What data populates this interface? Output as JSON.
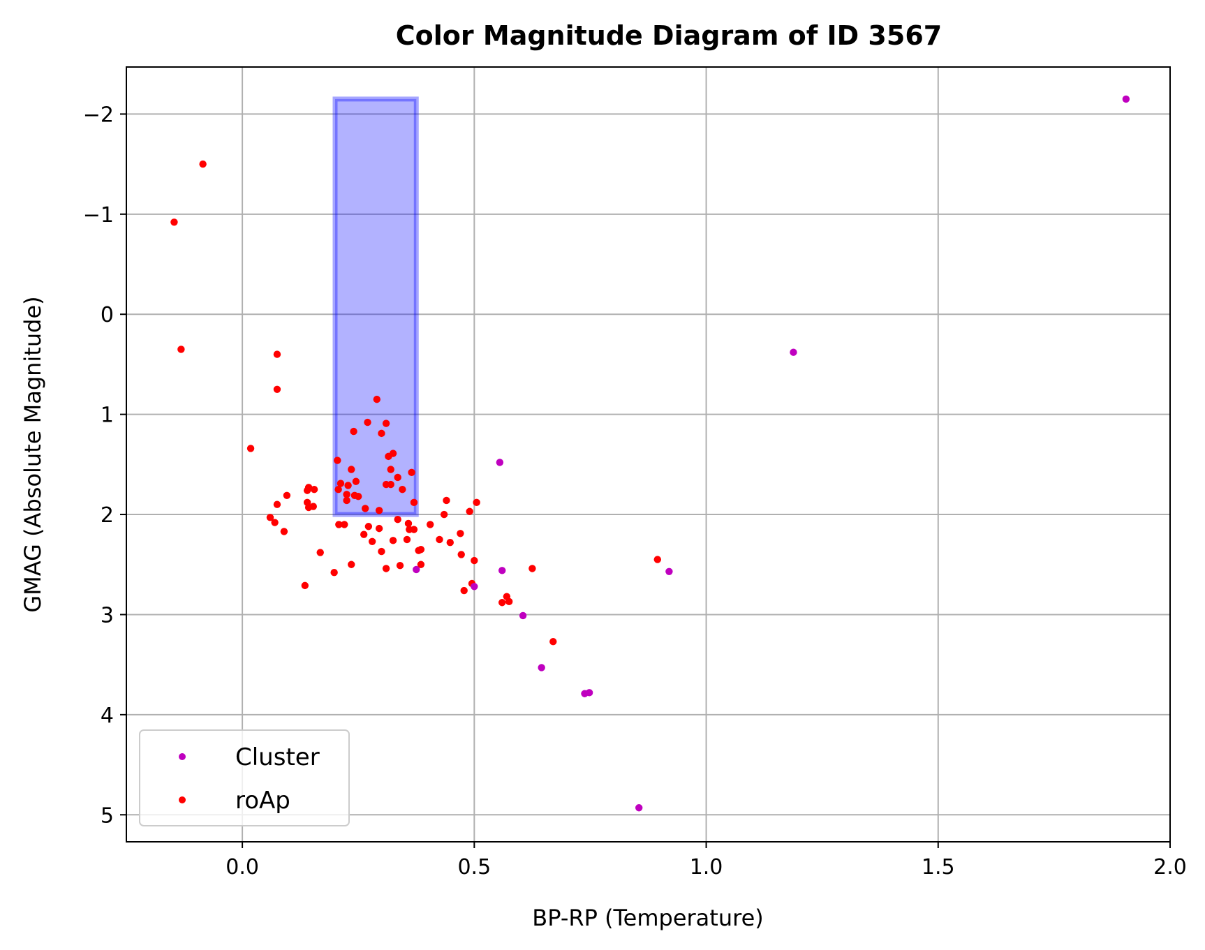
{
  "chart_data": {
    "type": "scatter",
    "title": "Color Magnitude Diagram of ID 3567",
    "xlabel": "BP-RP (Temperature)",
    "ylabel": "GMAG (Absolute Magnitude)",
    "xlim": [
      -0.25,
      2.0
    ],
    "ylim": [
      5.27,
      -2.47
    ],
    "y_inverted": true,
    "grid": true,
    "x_ticks": [
      0.0,
      0.5,
      1.0,
      1.5,
      2.0
    ],
    "x_tick_labels": [
      "0.0",
      "0.5",
      "1.0",
      "1.5",
      "2.0"
    ],
    "y_ticks": [
      -2,
      -1,
      0,
      1,
      2,
      3,
      4,
      5
    ],
    "y_tick_labels": [
      "−2",
      "−1",
      "0",
      "1",
      "2",
      "3",
      "4",
      "5"
    ],
    "highlight_region": {
      "x_range": [
        0.2,
        0.375
      ],
      "y_range": [
        -2.15,
        2.0
      ],
      "color": "#0000ff"
    },
    "legend": {
      "location": "lower-left",
      "entries": [
        "Cluster",
        "roAp"
      ]
    },
    "series": [
      {
        "name": "roAp",
        "color": "#ff0000",
        "points": [
          [
            -0.085,
            -1.5
          ],
          [
            -0.147,
            -0.92
          ],
          [
            -0.132,
            0.35
          ],
          [
            0.075,
            0.4
          ],
          [
            0.075,
            0.75
          ],
          [
            0.018,
            1.34
          ],
          [
            0.06,
            2.03
          ],
          [
            0.075,
            1.9
          ],
          [
            0.07,
            2.08
          ],
          [
            0.09,
            2.17
          ],
          [
            0.096,
            1.81
          ],
          [
            0.14,
            1.76
          ],
          [
            0.143,
            1.73
          ],
          [
            0.155,
            1.75
          ],
          [
            0.14,
            1.88
          ],
          [
            0.143,
            1.93
          ],
          [
            0.153,
            1.92
          ],
          [
            0.168,
            2.38
          ],
          [
            0.135,
            2.71
          ],
          [
            0.198,
            2.58
          ],
          [
            0.205,
            1.46
          ],
          [
            0.207,
            1.75
          ],
          [
            0.212,
            1.69
          ],
          [
            0.225,
            1.86
          ],
          [
            0.225,
            1.8
          ],
          [
            0.235,
            1.55
          ],
          [
            0.228,
            1.71
          ],
          [
            0.242,
            1.81
          ],
          [
            0.245,
            1.67
          ],
          [
            0.25,
            1.82
          ],
          [
            0.24,
            1.17
          ],
          [
            0.265,
            1.94
          ],
          [
            0.27,
            1.08
          ],
          [
            0.29,
            0.85
          ],
          [
            0.3,
            1.19
          ],
          [
            0.31,
            1.09
          ],
          [
            0.295,
            1.96
          ],
          [
            0.315,
            1.42
          ],
          [
            0.32,
            1.55
          ],
          [
            0.325,
            1.39
          ],
          [
            0.31,
            1.7
          ],
          [
            0.32,
            1.7
          ],
          [
            0.335,
            1.63
          ],
          [
            0.345,
            1.75
          ],
          [
            0.365,
            1.58
          ],
          [
            0.37,
            1.88
          ],
          [
            0.208,
            2.1
          ],
          [
            0.22,
            2.1
          ],
          [
            0.262,
            2.2
          ],
          [
            0.272,
            2.12
          ],
          [
            0.28,
            2.27
          ],
          [
            0.295,
            2.14
          ],
          [
            0.3,
            2.37
          ],
          [
            0.31,
            2.54
          ],
          [
            0.325,
            2.26
          ],
          [
            0.335,
            2.05
          ],
          [
            0.34,
            2.51
          ],
          [
            0.355,
            2.25
          ],
          [
            0.358,
            2.09
          ],
          [
            0.36,
            2.15
          ],
          [
            0.37,
            2.15
          ],
          [
            0.38,
            2.36
          ],
          [
            0.385,
            2.35
          ],
          [
            0.385,
            2.5
          ],
          [
            0.405,
            2.1
          ],
          [
            0.425,
            2.25
          ],
          [
            0.435,
            2.0
          ],
          [
            0.44,
            1.86
          ],
          [
            0.448,
            2.28
          ],
          [
            0.47,
            2.19
          ],
          [
            0.472,
            2.4
          ],
          [
            0.478,
            2.76
          ],
          [
            0.49,
            1.97
          ],
          [
            0.495,
            2.69
          ],
          [
            0.5,
            2.46
          ],
          [
            0.505,
            1.88
          ],
          [
            0.56,
            2.88
          ],
          [
            0.57,
            2.82
          ],
          [
            0.575,
            2.87
          ],
          [
            0.625,
            2.54
          ],
          [
            0.67,
            3.27
          ],
          [
            0.895,
            2.45
          ],
          [
            0.235,
            2.5
          ]
        ]
      },
      {
        "name": "Cluster",
        "color": "#bf00bf",
        "points": [
          [
            1.905,
            -2.15
          ],
          [
            1.188,
            0.38
          ],
          [
            0.555,
            1.48
          ],
          [
            0.375,
            2.55
          ],
          [
            0.56,
            2.56
          ],
          [
            0.5,
            2.72
          ],
          [
            0.605,
            3.01
          ],
          [
            0.645,
            3.53
          ],
          [
            0.738,
            3.79
          ],
          [
            0.748,
            3.78
          ],
          [
            0.92,
            2.57
          ],
          [
            0.855,
            4.93
          ]
        ]
      }
    ]
  }
}
